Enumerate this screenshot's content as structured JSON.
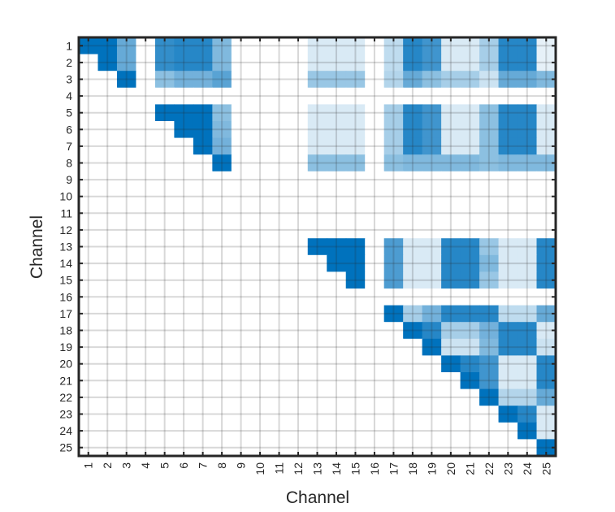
{
  "chart_data": {
    "type": "heatmap",
    "title": "",
    "xlabel": "Channel",
    "ylabel": "Channel",
    "x_ticks": [
      "1",
      "2",
      "3",
      "4",
      "5",
      "6",
      "7",
      "8",
      "9",
      "10",
      "11",
      "12",
      "13",
      "14",
      "15",
      "16",
      "17",
      "18",
      "19",
      "20",
      "21",
      "22",
      "23",
      "24",
      "25"
    ],
    "y_ticks": [
      "1",
      "2",
      "3",
      "4",
      "5",
      "6",
      "7",
      "8",
      "9",
      "10",
      "11",
      "12",
      "13",
      "14",
      "15",
      "16",
      "17",
      "18",
      "19",
      "20",
      "21",
      "22",
      "23",
      "24",
      "25"
    ],
    "xlim": [
      0.5,
      25.5
    ],
    "ylim": [
      0.5,
      25.5
    ],
    "y_direction": "reverse",
    "grid": true,
    "color_low": "#ffffff",
    "color_high": "#0072bd",
    "value_range": [
      0,
      1
    ],
    "rows": [
      [
        1.0,
        1.0,
        0.6,
        0,
        0.8,
        0.85,
        0.85,
        0.5,
        0,
        0,
        0,
        0,
        0.15,
        0.15,
        0.15,
        0,
        0.25,
        0.85,
        0.75,
        0.15,
        0.15,
        0.35,
        0.85,
        0.85,
        0.1
      ],
      [
        0,
        1.0,
        0.6,
        0,
        0.8,
        0.85,
        0.85,
        0.5,
        0,
        0,
        0,
        0,
        0.15,
        0.15,
        0.15,
        0,
        0.25,
        0.85,
        0.75,
        0.15,
        0.15,
        0.35,
        0.85,
        0.85,
        0.1
      ],
      [
        0,
        0,
        1.0,
        0,
        0.45,
        0.55,
        0.55,
        0.65,
        0,
        0,
        0,
        0,
        0.4,
        0.4,
        0.4,
        0,
        0.3,
        0.6,
        0.45,
        0.35,
        0.35,
        0.2,
        0.6,
        0.6,
        0.5
      ],
      [
        0,
        0,
        0,
        0,
        0,
        0,
        0,
        0,
        0,
        0,
        0,
        0,
        0,
        0,
        0,
        0,
        0,
        0,
        0,
        0,
        0,
        0,
        0,
        0,
        0
      ],
      [
        0,
        0,
        0,
        0,
        1.0,
        1.0,
        1.0,
        0.45,
        0,
        0,
        0,
        0,
        0.15,
        0.15,
        0.15,
        0,
        0.35,
        0.85,
        0.75,
        0.15,
        0.15,
        0.45,
        0.85,
        0.85,
        0.15
      ],
      [
        0,
        0,
        0,
        0,
        0,
        1.0,
        1.0,
        0.5,
        0,
        0,
        0,
        0,
        0.15,
        0.15,
        0.15,
        0,
        0.35,
        0.85,
        0.75,
        0.15,
        0.15,
        0.45,
        0.85,
        0.85,
        0.15
      ],
      [
        0,
        0,
        0,
        0,
        0,
        0,
        1.0,
        0.55,
        0,
        0,
        0,
        0,
        0.15,
        0.15,
        0.15,
        0,
        0.35,
        0.85,
        0.75,
        0.15,
        0.15,
        0.45,
        0.85,
        0.85,
        0.15
      ],
      [
        0,
        0,
        0,
        0,
        0,
        0,
        0,
        1.0,
        0,
        0,
        0,
        0,
        0.45,
        0.45,
        0.45,
        0,
        0.45,
        0.5,
        0.5,
        0.5,
        0.5,
        0.45,
        0.5,
        0.5,
        0.5
      ],
      [
        0,
        0,
        0,
        0,
        0,
        0,
        0,
        0,
        0,
        0,
        0,
        0,
        0,
        0,
        0,
        0,
        0,
        0,
        0,
        0,
        0,
        0,
        0,
        0,
        0
      ],
      [
        0,
        0,
        0,
        0,
        0,
        0,
        0,
        0,
        0,
        0,
        0,
        0,
        0,
        0,
        0,
        0,
        0,
        0,
        0,
        0,
        0,
        0,
        0,
        0,
        0
      ],
      [
        0,
        0,
        0,
        0,
        0,
        0,
        0,
        0,
        0,
        0,
        0,
        0,
        0,
        0,
        0,
        0,
        0,
        0,
        0,
        0,
        0,
        0,
        0,
        0,
        0
      ],
      [
        0,
        0,
        0,
        0,
        0,
        0,
        0,
        0,
        0,
        0,
        0,
        0,
        0,
        0,
        0,
        0,
        0,
        0,
        0,
        0,
        0,
        0,
        0,
        0,
        0
      ],
      [
        0,
        0,
        0,
        0,
        0,
        0,
        0,
        0,
        0,
        0,
        0,
        0,
        1.0,
        1.0,
        1.0,
        0,
        0.7,
        0.15,
        0.15,
        0.85,
        0.85,
        0.4,
        0.15,
        0.15,
        0.85
      ],
      [
        0,
        0,
        0,
        0,
        0,
        0,
        0,
        0,
        0,
        0,
        0,
        0,
        0,
        1.0,
        1.0,
        0,
        0.7,
        0.15,
        0.15,
        0.85,
        0.85,
        0.5,
        0.15,
        0.15,
        0.85
      ],
      [
        0,
        0,
        0,
        0,
        0,
        0,
        0,
        0,
        0,
        0,
        0,
        0,
        0,
        0,
        1.0,
        0,
        0.7,
        0.15,
        0.15,
        0.85,
        0.85,
        0.4,
        0.15,
        0.15,
        0.85
      ],
      [
        0,
        0,
        0,
        0,
        0,
        0,
        0,
        0,
        0,
        0,
        0,
        0,
        0,
        0,
        0,
        0,
        0,
        0,
        0,
        0,
        0,
        0,
        0,
        0,
        0
      ],
      [
        0,
        0,
        0,
        0,
        0,
        0,
        0,
        0,
        0,
        0,
        0,
        0,
        0,
        0,
        0,
        0,
        1.0,
        0.35,
        0.55,
        0.85,
        0.85,
        0.85,
        0.25,
        0.25,
        0.6
      ],
      [
        0,
        0,
        0,
        0,
        0,
        0,
        0,
        0,
        0,
        0,
        0,
        0,
        0,
        0,
        0,
        0,
        0,
        1.0,
        0.85,
        0.35,
        0.35,
        0.55,
        0.85,
        0.85,
        0.15
      ],
      [
        0,
        0,
        0,
        0,
        0,
        0,
        0,
        0,
        0,
        0,
        0,
        0,
        0,
        0,
        0,
        0,
        0,
        0,
        1.0,
        0.2,
        0.2,
        0.5,
        0.85,
        0.85,
        0.2
      ],
      [
        0,
        0,
        0,
        0,
        0,
        0,
        0,
        0,
        0,
        0,
        0,
        0,
        0,
        0,
        0,
        0,
        0,
        0,
        0,
        1.0,
        0.85,
        0.75,
        0.15,
        0.15,
        0.85
      ],
      [
        0,
        0,
        0,
        0,
        0,
        0,
        0,
        0,
        0,
        0,
        0,
        0,
        0,
        0,
        0,
        0,
        0,
        0,
        0,
        0,
        1.0,
        0.75,
        0.15,
        0.15,
        0.85
      ],
      [
        0,
        0,
        0,
        0,
        0,
        0,
        0,
        0,
        0,
        0,
        0,
        0,
        0,
        0,
        0,
        0,
        0,
        0,
        0,
        0,
        0,
        1.0,
        0.3,
        0.3,
        0.6
      ],
      [
        0,
        0,
        0,
        0,
        0,
        0,
        0,
        0,
        0,
        0,
        0,
        0,
        0,
        0,
        0,
        0,
        0,
        0,
        0,
        0,
        0,
        0,
        1.0,
        0.85,
        0.15
      ],
      [
        0,
        0,
        0,
        0,
        0,
        0,
        0,
        0,
        0,
        0,
        0,
        0,
        0,
        0,
        0,
        0,
        0,
        0,
        0,
        0,
        0,
        0,
        0,
        1.0,
        0.15
      ],
      [
        0,
        0,
        0,
        0,
        0,
        0,
        0,
        0,
        0,
        0,
        0,
        0,
        0,
        0,
        0,
        0,
        0,
        0,
        0,
        0,
        0,
        0,
        0,
        0,
        1.0
      ]
    ]
  }
}
